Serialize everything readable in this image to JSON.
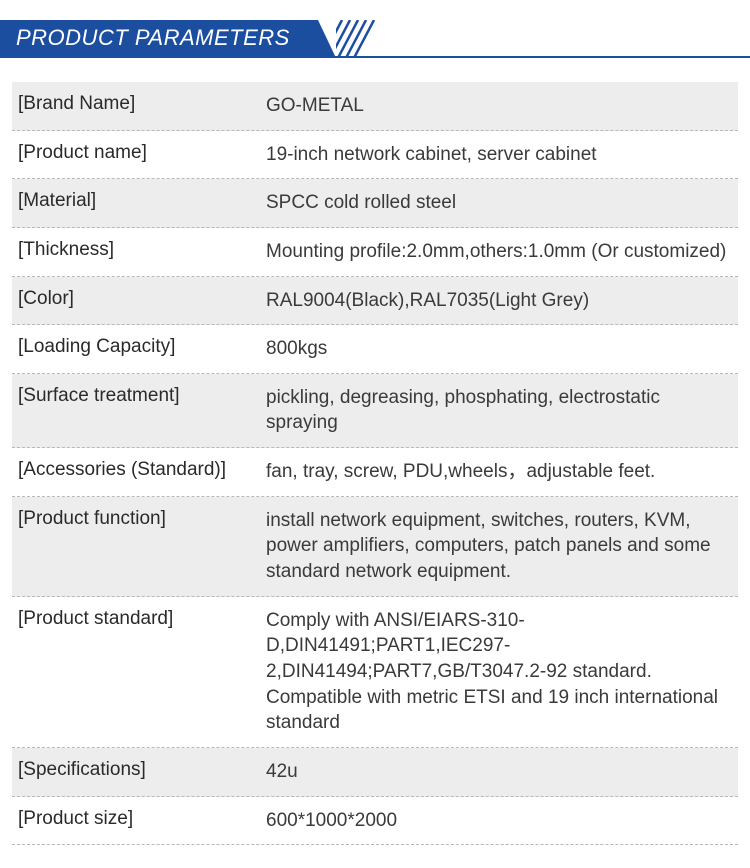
{
  "header": {
    "title": "PRODUCT PARAMETERS",
    "band_color": "#1c4ea0",
    "text_color": "#ffffff"
  },
  "table": {
    "zebra_color": "#ededed",
    "divider_color": "#b8b8b8",
    "key_color": "#2a2a2a",
    "val_color": "#3a3a3a",
    "font_size": 19,
    "rows": [
      {
        "key": "[Brand Name]",
        "value": "GO-METAL",
        "zebra": true
      },
      {
        "key": "[Product name]",
        "value": "19-inch network cabinet, server cabinet",
        "zebra": false
      },
      {
        "key": "[Material]",
        "value": "SPCC cold rolled steel",
        "zebra": true
      },
      {
        "key": "[Thickness]",
        "value": "Mounting profile:2.0mm,others:1.0mm (Or customized)",
        "zebra": false
      },
      {
        "key": "[Color]",
        "value": "RAL9004(Black),RAL7035(Light Grey)",
        "zebra": true
      },
      {
        "key": "[Loading Capacity]",
        "value": "800kgs",
        "zebra": false
      },
      {
        "key": "[Surface treatment]",
        "value": "pickling, degreasing, phosphating, electrostatic spraying",
        "zebra": true
      },
      {
        "key": "[Accessories (Standard)]",
        "value": "fan, tray, screw, PDU,wheels，adjustable feet.",
        "zebra": false
      },
      {
        "key": "[Product function]",
        "value": "install network equipment, switches, routers, KVM, power amplifiers, computers, patch panels and some standard network equipment.",
        "zebra": true
      },
      {
        "key": "[Product standard]",
        "value": "Comply with ANSI/EIARS-310-D,DIN41491;PART1,IEC297-2,DIN41494;PART7,GB/T3047.2-92 standard. Compatible with metric ETSI and 19 inch international standard",
        "zebra": false
      },
      {
        "key": "[Specifications]",
        "value": "42u",
        "zebra": true
      },
      {
        "key": "[Product size]",
        "value": "600*1000*2000",
        "zebra": false
      }
    ]
  }
}
